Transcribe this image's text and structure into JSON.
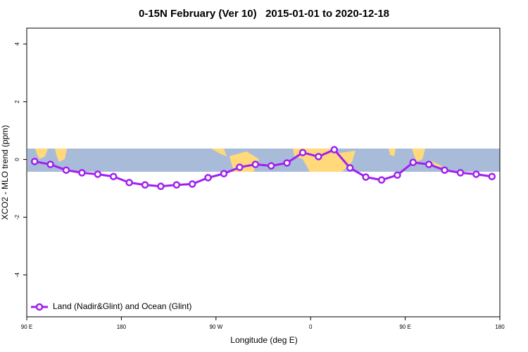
{
  "chart_data": {
    "type": "line",
    "title": "0-15N February (Ver 10)   2015-01-01 to 2020-12-18",
    "x_label": "Longitude (deg E)",
    "y_label": "XCO2 - MLO trend (ppm)",
    "x": [
      97.5,
      112.5,
      127.5,
      142.5,
      157.5,
      172.5,
      187.5,
      202.5,
      217.5,
      232.5,
      247.5,
      262.5,
      277.5,
      292.5,
      307.5,
      322.5,
      337.5,
      352.5,
      367.5,
      382.5,
      397.5,
      412.5,
      427.5,
      442.5,
      457.5,
      472.5,
      487.5,
      502.5,
      517.5,
      532.5
    ],
    "series": [
      {
        "name": "Land (Nadir&Glint) and Ocean (Glint)",
        "color": "#a020f0",
        "values": [
          -0.07,
          -0.17,
          -0.37,
          -0.46,
          -0.51,
          -0.59,
          -0.8,
          -0.88,
          -0.93,
          -0.88,
          -0.85,
          -0.63,
          -0.49,
          -0.27,
          -0.17,
          -0.22,
          -0.12,
          0.24,
          0.1,
          0.34,
          -0.29,
          -0.61,
          -0.71,
          -0.54,
          -0.1,
          -0.17,
          -0.37,
          -0.46,
          -0.51,
          -0.59
        ]
      }
    ],
    "xlim": [
      90,
      540
    ],
    "xticks": [
      {
        "value": 90,
        "label": "90 E"
      },
      {
        "value": 180,
        "label": "180"
      },
      {
        "value": 270,
        "label": "90 W"
      },
      {
        "value": 360,
        "label": "0"
      },
      {
        "value": 450,
        "label": "90 E"
      },
      {
        "value": 540,
        "label": "180"
      }
    ],
    "ylim": [
      -5.45,
      4.55
    ],
    "yticks": [
      -4,
      -2,
      0,
      2,
      4
    ],
    "legend": "bottom-left"
  }
}
